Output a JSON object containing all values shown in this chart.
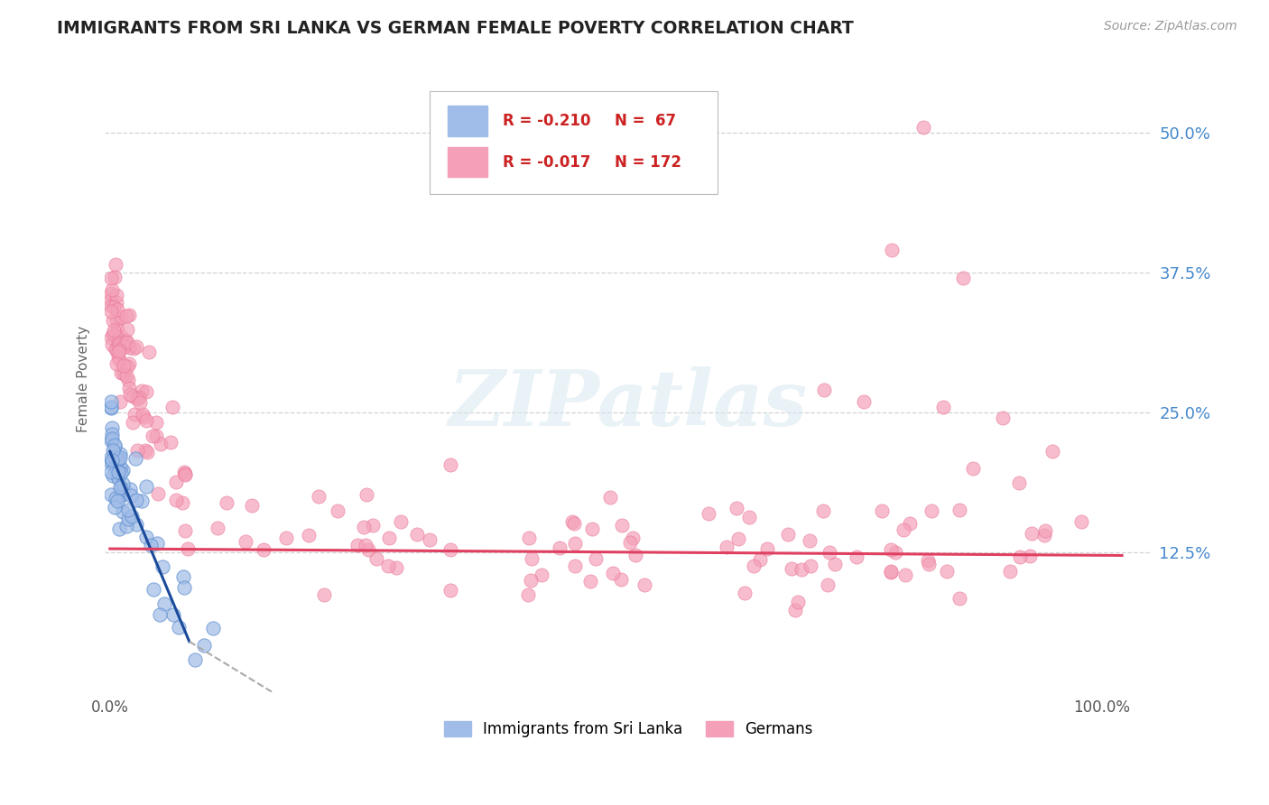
{
  "title": "IMMIGRANTS FROM SRI LANKA VS GERMAN FEMALE POVERTY CORRELATION CHART",
  "source": "Source: ZipAtlas.com",
  "ylabel": "Female Poverty",
  "watermark": "ZIPatlas",
  "legend_entries": [
    {
      "label": "Immigrants from Sri Lanka",
      "color": "#a8c8f0",
      "R": -0.21,
      "N": 67
    },
    {
      "label": "Germans",
      "color": "#f4a0b8",
      "R": -0.017,
      "N": 172
    }
  ],
  "ylim": [
    0,
    0.56
  ],
  "xlim": [
    -0.005,
    1.05
  ],
  "yticks": [
    0.125,
    0.25,
    0.375,
    0.5
  ],
  "ytick_labels": [
    "12.5%",
    "25.0%",
    "37.5%",
    "50.0%"
  ],
  "blue_color": "#a0bce8",
  "blue_edge_color": "#6090d0",
  "pink_color": "#f4a0b8",
  "pink_edge_color": "#e87090",
  "blue_line_color": "#1a4a9a",
  "blue_dash_color": "#aaaaaa",
  "pink_line_color": "#e04060",
  "grid_color": "#c8c8c8",
  "background_color": "#ffffff",
  "title_color": "#222222",
  "axis_label_color": "#666666",
  "tick_label_color_right": "#4488cc",
  "source_color": "#999999",
  "legend_box_edge": "#bbbbbb",
  "R_N_color": "#cc2222"
}
